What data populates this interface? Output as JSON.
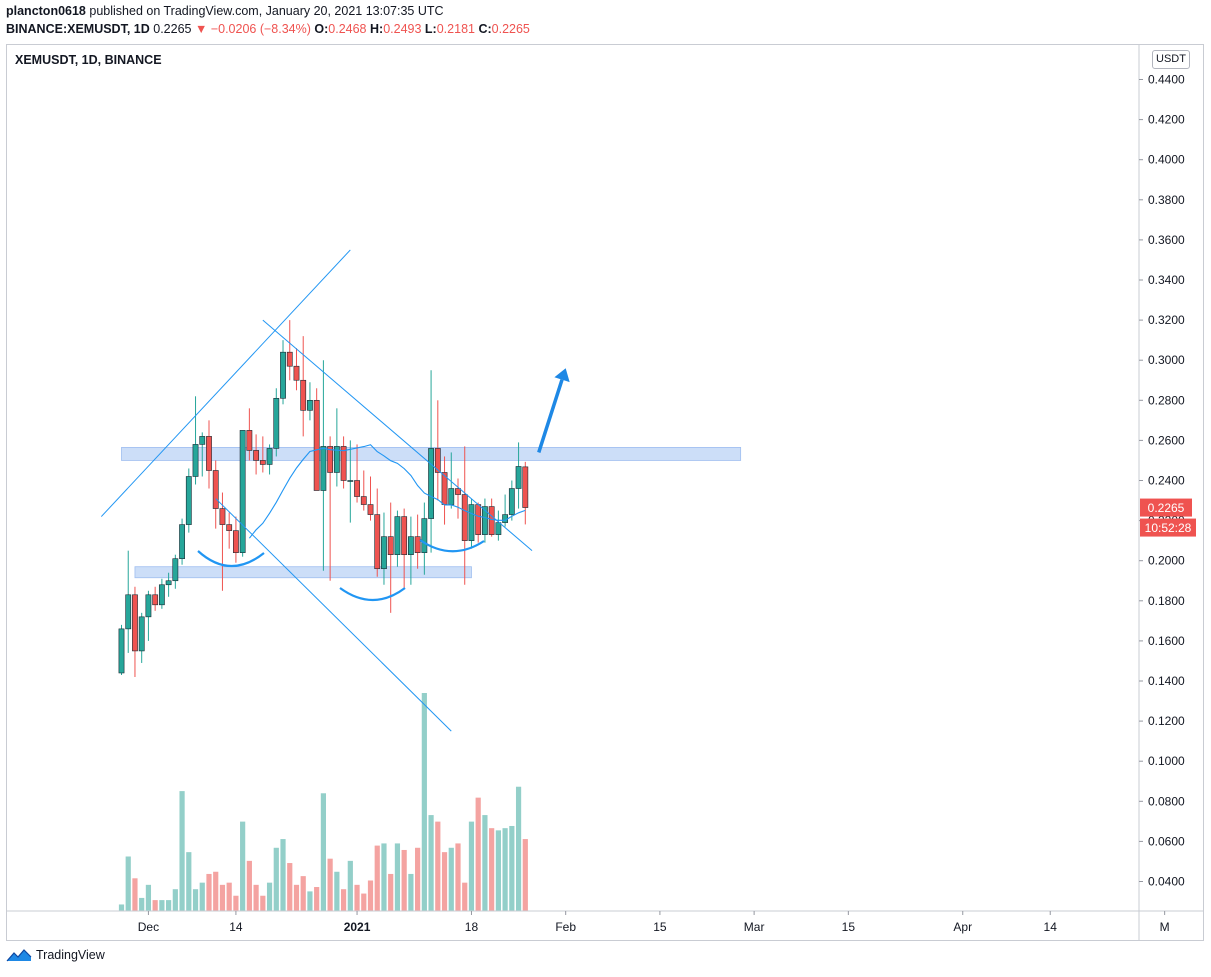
{
  "header": {
    "author": "plancton0618",
    "published_text": "published on TradingView.com, January 20, 2021 13:07:35 UTC",
    "symbol_line": "BINANCE:XEMUSDT, 1D",
    "last": "0.2265",
    "change_arrow": "▼",
    "change": "−0.0206 (−8.34%)",
    "o_label": "O:",
    "o_value": "0.2468",
    "h_label": "H:",
    "h_value": "0.2493",
    "l_label": "L:",
    "l_value": "0.2181",
    "c_label": "C:",
    "c_value": "0.2265"
  },
  "chart_label": "XEMUSDT, 1D, BINANCE",
  "currency": "USDT",
  "footer": {
    "brand": "TradingView"
  },
  "colors": {
    "up": "#26a69a",
    "down": "#ef5350",
    "vol_up": "#93cfc9",
    "vol_down": "#f4a3a1",
    "drawing": "#2196f3",
    "zone": "#bbd3f6",
    "arrow": "#1e88e5"
  },
  "chart_data": {
    "type": "candlestick",
    "symbol": "XEMUSDT",
    "interval": "1D",
    "exchange": "BINANCE",
    "x_start_date": "2020-11-27",
    "ylim": [
      0.03,
      0.445
    ],
    "y_ticks": [
      "0.4400",
      "0.4200",
      "0.4000",
      "0.3800",
      "0.3600",
      "0.3400",
      "0.3200",
      "0.3000",
      "0.2800",
      "0.2600",
      "0.2400",
      "0.2200",
      "0.2000",
      "0.1800",
      "0.1600",
      "0.1400",
      "0.1200",
      "0.1000",
      "0.0800",
      "0.0600",
      "0.0400"
    ],
    "x_ticks": [
      {
        "label": "Dec",
        "date": "2020-12-01"
      },
      {
        "label": "14",
        "date": "2020-12-14"
      },
      {
        "label": "2021",
        "date": "2021-01-01"
      },
      {
        "label": "18",
        "date": "2021-01-18"
      },
      {
        "label": "Feb",
        "date": "2021-02-01"
      },
      {
        "label": "15",
        "date": "2021-02-15"
      },
      {
        "label": "Mar",
        "date": "2021-03-01"
      },
      {
        "label": "15",
        "date": "2021-03-15"
      },
      {
        "label": "Apr",
        "date": "2021-04-01"
      },
      {
        "label": "14",
        "date": "2021-04-14"
      },
      {
        "label": "M",
        "date": "2021-05-01"
      }
    ],
    "last_price_label": "0.2265",
    "countdown_label": "10:52:28",
    "candles": [
      {
        "o": 0.144,
        "h": 0.168,
        "l": 0.143,
        "c": 0.166
      },
      {
        "o": 0.166,
        "h": 0.205,
        "l": 0.154,
        "c": 0.183
      },
      {
        "o": 0.183,
        "h": 0.187,
        "l": 0.142,
        "c": 0.155
      },
      {
        "o": 0.155,
        "h": 0.174,
        "l": 0.149,
        "c": 0.172
      },
      {
        "o": 0.172,
        "h": 0.185,
        "l": 0.16,
        "c": 0.183
      },
      {
        "o": 0.183,
        "h": 0.187,
        "l": 0.175,
        "c": 0.178
      },
      {
        "o": 0.178,
        "h": 0.191,
        "l": 0.176,
        "c": 0.188
      },
      {
        "o": 0.188,
        "h": 0.194,
        "l": 0.182,
        "c": 0.19
      },
      {
        "o": 0.19,
        "h": 0.203,
        "l": 0.186,
        "c": 0.201
      },
      {
        "o": 0.201,
        "h": 0.221,
        "l": 0.198,
        "c": 0.218
      },
      {
        "o": 0.218,
        "h": 0.246,
        "l": 0.214,
        "c": 0.242
      },
      {
        "o": 0.242,
        "h": 0.282,
        "l": 0.238,
        "c": 0.258
      },
      {
        "o": 0.258,
        "h": 0.264,
        "l": 0.242,
        "c": 0.262
      },
      {
        "o": 0.262,
        "h": 0.27,
        "l": 0.236,
        "c": 0.245
      },
      {
        "o": 0.245,
        "h": 0.25,
        "l": 0.216,
        "c": 0.226
      },
      {
        "o": 0.226,
        "h": 0.234,
        "l": 0.185,
        "c": 0.218
      },
      {
        "o": 0.218,
        "h": 0.224,
        "l": 0.206,
        "c": 0.215
      },
      {
        "o": 0.215,
        "h": 0.222,
        "l": 0.199,
        "c": 0.204
      },
      {
        "o": 0.204,
        "h": 0.265,
        "l": 0.202,
        "c": 0.265
      },
      {
        "o": 0.265,
        "h": 0.276,
        "l": 0.25,
        "c": 0.255
      },
      {
        "o": 0.255,
        "h": 0.263,
        "l": 0.243,
        "c": 0.25
      },
      {
        "o": 0.25,
        "h": 0.262,
        "l": 0.244,
        "c": 0.248
      },
      {
        "o": 0.248,
        "h": 0.258,
        "l": 0.243,
        "c": 0.256
      },
      {
        "o": 0.256,
        "h": 0.286,
        "l": 0.252,
        "c": 0.281
      },
      {
        "o": 0.281,
        "h": 0.31,
        "l": 0.278,
        "c": 0.304
      },
      {
        "o": 0.304,
        "h": 0.32,
        "l": 0.29,
        "c": 0.297
      },
      {
        "o": 0.297,
        "h": 0.306,
        "l": 0.285,
        "c": 0.29
      },
      {
        "o": 0.29,
        "h": 0.312,
        "l": 0.262,
        "c": 0.275
      },
      {
        "o": 0.275,
        "h": 0.289,
        "l": 0.27,
        "c": 0.28
      },
      {
        "o": 0.28,
        "h": 0.286,
        "l": 0.236,
        "c": 0.235
      },
      {
        "o": 0.235,
        "h": 0.3,
        "l": 0.195,
        "c": 0.257
      },
      {
        "o": 0.257,
        "h": 0.262,
        "l": 0.19,
        "c": 0.244
      },
      {
        "o": 0.244,
        "h": 0.276,
        "l": 0.237,
        "c": 0.257
      },
      {
        "o": 0.257,
        "h": 0.262,
        "l": 0.236,
        "c": 0.24
      },
      {
        "o": 0.24,
        "h": 0.26,
        "l": 0.219,
        "c": 0.24
      },
      {
        "o": 0.24,
        "h": 0.258,
        "l": 0.229,
        "c": 0.232
      },
      {
        "o": 0.232,
        "h": 0.245,
        "l": 0.225,
        "c": 0.228
      },
      {
        "o": 0.228,
        "h": 0.242,
        "l": 0.22,
        "c": 0.223
      },
      {
        "o": 0.223,
        "h": 0.236,
        "l": 0.192,
        "c": 0.196
      },
      {
        "o": 0.196,
        "h": 0.224,
        "l": 0.188,
        "c": 0.212
      },
      {
        "o": 0.212,
        "h": 0.229,
        "l": 0.174,
        "c": 0.203
      },
      {
        "o": 0.203,
        "h": 0.225,
        "l": 0.197,
        "c": 0.222
      },
      {
        "o": 0.222,
        "h": 0.226,
        "l": 0.186,
        "c": 0.203
      },
      {
        "o": 0.203,
        "h": 0.222,
        "l": 0.188,
        "c": 0.212
      },
      {
        "o": 0.212,
        "h": 0.223,
        "l": 0.196,
        "c": 0.204
      },
      {
        "o": 0.204,
        "h": 0.229,
        "l": 0.193,
        "c": 0.221
      },
      {
        "o": 0.221,
        "h": 0.295,
        "l": 0.204,
        "c": 0.256
      },
      {
        "o": 0.256,
        "h": 0.28,
        "l": 0.23,
        "c": 0.244
      },
      {
        "o": 0.244,
        "h": 0.252,
        "l": 0.218,
        "c": 0.228
      },
      {
        "o": 0.228,
        "h": 0.254,
        "l": 0.226,
        "c": 0.236
      },
      {
        "o": 0.236,
        "h": 0.241,
        "l": 0.221,
        "c": 0.233
      },
      {
        "o": 0.233,
        "h": 0.257,
        "l": 0.188,
        "c": 0.21
      },
      {
        "o": 0.21,
        "h": 0.231,
        "l": 0.206,
        "c": 0.228
      },
      {
        "o": 0.228,
        "h": 0.229,
        "l": 0.209,
        "c": 0.213
      },
      {
        "o": 0.213,
        "h": 0.231,
        "l": 0.209,
        "c": 0.227
      },
      {
        "o": 0.227,
        "h": 0.231,
        "l": 0.212,
        "c": 0.213
      },
      {
        "o": 0.213,
        "h": 0.225,
        "l": 0.21,
        "c": 0.219
      },
      {
        "o": 0.219,
        "h": 0.233,
        "l": 0.217,
        "c": 0.223
      },
      {
        "o": 0.223,
        "h": 0.24,
        "l": 0.22,
        "c": 0.236
      },
      {
        "o": 0.236,
        "h": 0.259,
        "l": 0.226,
        "c": 0.247
      },
      {
        "o": 0.2468,
        "h": 0.2493,
        "l": 0.2181,
        "c": 0.2265
      }
    ],
    "volume_rel": [
      0.03,
      0.25,
      0.15,
      0.06,
      0.12,
      0.05,
      0.05,
      0.05,
      0.1,
      0.55,
      0.27,
      0.1,
      0.13,
      0.17,
      0.18,
      0.12,
      0.13,
      0.07,
      0.41,
      0.23,
      0.12,
      0.07,
      0.13,
      0.29,
      0.33,
      0.22,
      0.12,
      0.16,
      0.09,
      0.11,
      0.54,
      0.24,
      0.18,
      0.1,
      0.23,
      0.12,
      0.08,
      0.14,
      0.3,
      0.31,
      0.17,
      0.31,
      0.28,
      0.17,
      0.29,
      1.0,
      0.44,
      0.41,
      0.27,
      0.29,
      0.31,
      0.13,
      0.41,
      0.52,
      0.44,
      0.38,
      0.37,
      0.38,
      0.39,
      0.57,
      0.33
    ]
  },
  "drawings": {
    "channel_upper": {
      "from": {
        "date": "2020-11-24",
        "price": 0.222
      },
      "to": {
        "date": "2020-12-31",
        "price": 0.355
      }
    },
    "channel_lower": {
      "from": {
        "date": "2020-12-11",
        "price": 0.231
      },
      "to": {
        "date": "2021-01-15",
        "price": 0.115
      }
    },
    "wedge_upper": {
      "from": {
        "date": "2020-12-18",
        "price": 0.32
      },
      "to": {
        "date": "2021-01-27",
        "price": 0.205
      }
    },
    "resistance_zone": {
      "from_date": "2020-11-27",
      "to_date": "2021-02-27",
      "price_low": 0.25,
      "price_high": 0.2565
    },
    "support_zone": {
      "from_date": "2020-11-29",
      "to_date": "2021-01-18",
      "price_low": 0.1915,
      "price_high": 0.197
    },
    "arrow": {
      "from": {
        "date": "2021-01-28",
        "price": 0.254
      },
      "to": {
        "date": "2021-02-01",
        "price": 0.296
      }
    }
  }
}
